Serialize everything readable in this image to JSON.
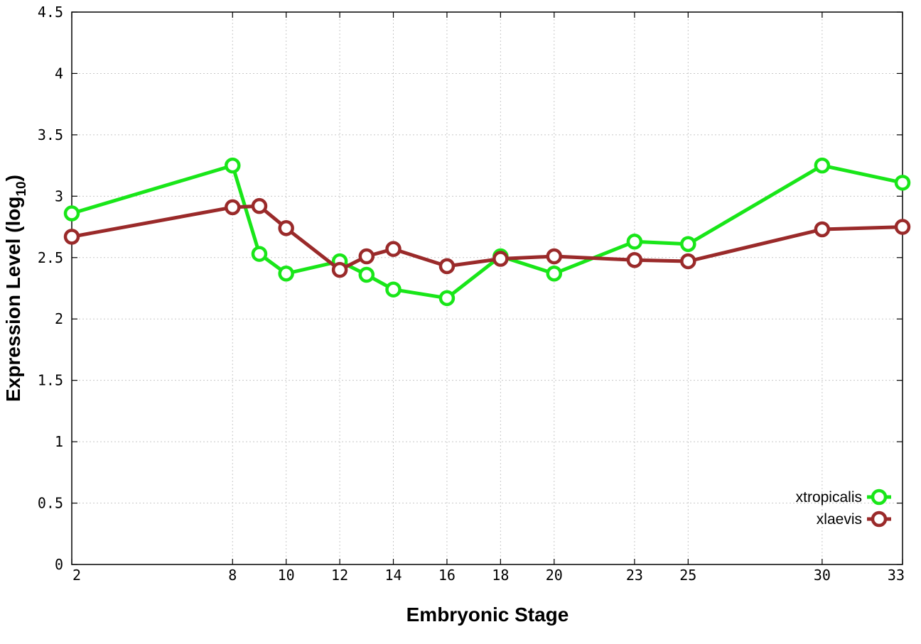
{
  "chart_data": {
    "type": "line",
    "xlabel": "Embryonic Stage",
    "ylabel": "Expression Level (log",
    "ylabel_sub": "10",
    "ylabel_end": ")",
    "xlim": [
      2,
      33
    ],
    "ylim": [
      0,
      4.5
    ],
    "x_ticks": [
      2,
      8,
      10,
      12,
      14,
      16,
      18,
      20,
      23,
      25,
      30,
      33
    ],
    "x_tick_labels": [
      "2",
      "8",
      "10",
      "12",
      "14",
      "16",
      "18",
      "20",
      "23",
      "25",
      "30",
      "33"
    ],
    "y_ticks": [
      0,
      0.5,
      1,
      1.5,
      2,
      2.5,
      3,
      3.5,
      4,
      4.5
    ],
    "y_tick_labels": [
      "0",
      "0.5",
      "1",
      "1.5",
      "2",
      "2.5",
      "3",
      "3.5",
      "4",
      "4.5"
    ],
    "grid": true,
    "legend_position": "bottom-right",
    "x": [
      2,
      8,
      9,
      10,
      12,
      13,
      14,
      16,
      18,
      20,
      23,
      25,
      30,
      33
    ],
    "series": [
      {
        "name": "xtropicalis",
        "color": "#19e619",
        "values": [
          2.86,
          3.25,
          2.53,
          2.37,
          2.47,
          2.36,
          2.24,
          2.17,
          2.51,
          2.37,
          2.63,
          2.61,
          3.25,
          3.11
        ]
      },
      {
        "name": "xlaevis",
        "color": "#9a2a2a",
        "values": [
          2.67,
          2.91,
          2.92,
          2.74,
          2.4,
          2.51,
          2.57,
          2.43,
          2.49,
          2.51,
          2.48,
          2.47,
          2.73,
          2.75
        ]
      }
    ]
  }
}
